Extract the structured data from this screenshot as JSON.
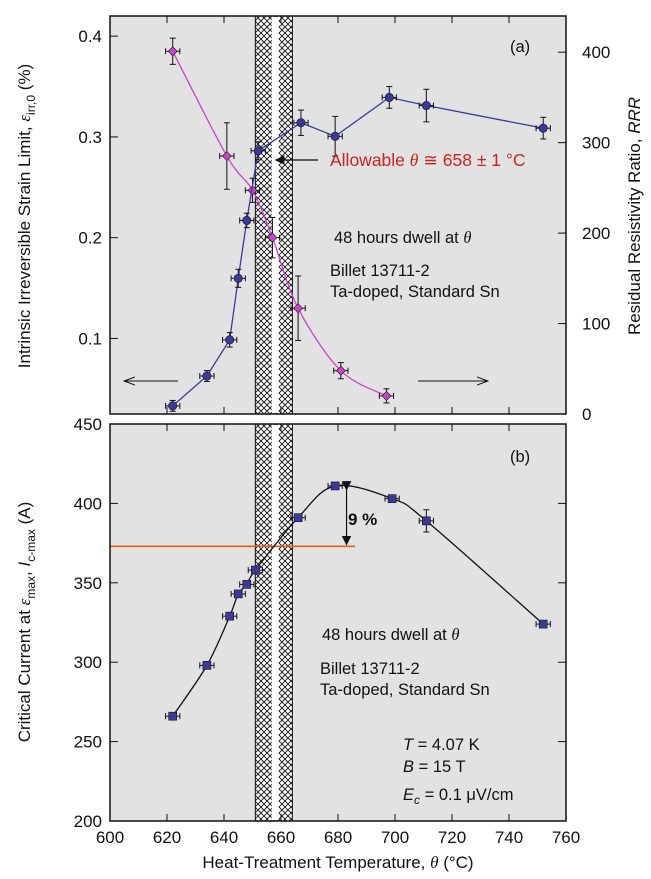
{
  "chart_data": [
    {
      "id": "a",
      "type": "line",
      "panel_label": "(a)",
      "x_range": [
        600,
        760
      ],
      "x_ticks": [
        600,
        620,
        640,
        660,
        680,
        700,
        720,
        740,
        760
      ],
      "grid": false,
      "y_left": {
        "label_main": "Intrinsic Irreversible Strain Limit, ",
        "label_symbol": "ε",
        "label_sub": "irr,0",
        "label_unit": " (%)",
        "range": [
          0.025,
          0.42
        ],
        "ticks": [
          0.1,
          0.2,
          0.3,
          0.4
        ],
        "tick_labels": [
          "0.1",
          "0.2",
          "0.3",
          "0.4"
        ]
      },
      "y_right": {
        "label_main": "Residual Resistivity Ratio, ",
        "label_symbol": "RRR",
        "range": [
          0,
          440
        ],
        "ticks": [
          0,
          100,
          200,
          300,
          400
        ],
        "tick_labels": [
          "0",
          "100",
          "200",
          "300",
          "400"
        ]
      },
      "series": [
        {
          "axis": "left",
          "color": "#cc44cc",
          "marker": "diamond",
          "x": [
            622,
            641,
            650,
            657,
            666,
            681,
            697
          ],
          "y": [
            0.385,
            0.281,
            0.247,
            0.2,
            0.13,
            0.068,
            0.043
          ],
          "yerr": [
            0.013,
            0.033,
            0.012,
            0.02,
            0.032,
            0.008,
            0.007
          ],
          "xerr": 2.5
        },
        {
          "axis": "right",
          "color": "#3a3a9e",
          "marker": "circle",
          "x": [
            622,
            634,
            642,
            645,
            648,
            652,
            667,
            679,
            698,
            711,
            752
          ],
          "y": [
            9,
            42,
            82,
            150,
            214,
            291,
            322,
            307,
            350,
            341,
            316
          ],
          "yerr": [
            6,
            6,
            8,
            10,
            8,
            10,
            14,
            22,
            12,
            18,
            12
          ],
          "xerr": 2.5
        }
      ],
      "hatched_band": [
        651,
        664
      ],
      "white_center_line": 658,
      "annotations": {
        "allowable_text": "Allowable ",
        "allowable_theta": "θ",
        "allowable_value": " ≅ 658 ± 1 °C",
        "allowable_color": "#cc2222",
        "dwell_text": "48 hours dwell at ",
        "dwell_theta": "θ",
        "billet_line1": "Billet 13711-2",
        "billet_line2": "Ta-doped, Standard Sn"
      }
    },
    {
      "id": "b",
      "type": "line",
      "panel_label": "(b)",
      "x_range": [
        600,
        760
      ],
      "x_ticks": [
        600,
        620,
        640,
        660,
        680,
        700,
        720,
        740,
        760
      ],
      "x_tick_labels": [
        "600",
        "620",
        "640",
        "660",
        "680",
        "700",
        "720",
        "740",
        "760"
      ],
      "x_label_main": "Heat-Treatment Temperature, ",
      "x_label_symbol": "θ",
      "x_label_unit": " (°C)",
      "grid": false,
      "y_left": {
        "label_main": "Critical Current at ",
        "label_eps": "ε",
        "label_eps_sub": "max",
        "label_mid": ", ",
        "label_I": "I",
        "label_I_sub": "c-max",
        "label_unit": " (A)",
        "range": [
          200,
          450
        ],
        "ticks": [
          200,
          250,
          300,
          350,
          400,
          450
        ],
        "tick_labels": [
          "200",
          "250",
          "300",
          "350",
          "400",
          "450"
        ]
      },
      "series": [
        {
          "color": "#3a3a9e",
          "marker": "square",
          "x": [
            622,
            634,
            642,
            645,
            648,
            651,
            666,
            679,
            699,
            711,
            752
          ],
          "y": [
            266,
            298,
            329,
            343,
            349,
            358,
            391,
            411,
            403,
            389,
            324
          ],
          "yerr": [
            0,
            0,
            0,
            0,
            0,
            0,
            0,
            0,
            0,
            7,
            0
          ],
          "xerr": 2.5
        }
      ],
      "hatched_band": [
        651,
        664
      ],
      "white_center_line": 658,
      "reference_line": {
        "y": 373,
        "x_end": 686,
        "color": "#e06010"
      },
      "peak_arrow": {
        "x": 683,
        "y_top": 410,
        "y_bottom": 373
      },
      "annotations": {
        "percent": "9 %",
        "percent_color": "#cc2222",
        "dwell_text": "48 hours dwell at ",
        "dwell_theta": "θ",
        "billet_line1": "Billet 13711-2",
        "billet_line2": "Ta-doped, Standard Sn",
        "T_sym": "T",
        "T_val": " = 4.07 K",
        "B_sym": "B",
        "B_val": " = 15 T",
        "E_sym": "E",
        "E_sub": "c",
        "E_val": " = 0.1 μV/cm"
      }
    }
  ]
}
